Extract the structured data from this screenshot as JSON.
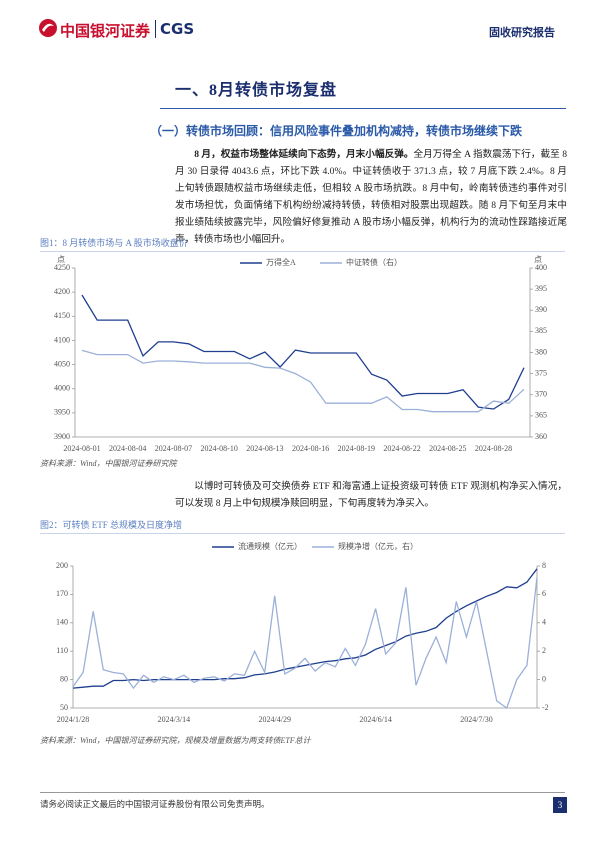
{
  "header": {
    "logo_cn": "中国银河证券",
    "logo_en": "CGS",
    "report_type": "固收研究报告"
  },
  "section": {
    "title": "一、8月转债市场复盘",
    "subtitle": "（一）转债市场回顾：信用风险事件叠加机构减持，转债市场继续下跌"
  },
  "paragraphs": [
    {
      "lead": "8 月，权益市场整体延续向下态势，月末小幅反弹。",
      "text": "全月万得全 A 指数震荡下行，截至 8 月 30 日录得 4043.6 点，环比下跌 4.0%。中证转债收于 371.3 点，较 7 月底下跌 2.4%。8 月上旬转债跟随权益市场继续走低，但相较 A 股市场抗跌。8 月中旬，岭南转债违约事件对引发市场担忧，负面情绪下机构纷纷减持转债，转债相对股票出现超跌。随 8 月下旬至月末中报业绩陆续披露完毕，风险偏好修复推动 A 股市场小幅反弹，机构行为的流动性踩踏接近尾声，转债市场也小幅回升。"
    },
    {
      "text": "以博时可转债及可交换债券 ETF 和海富通上证投资级可转债 ETF 观测机构净买入情况，可以发现 8 月上中旬规模净赎回明显，下旬再度转为净买入。"
    }
  ],
  "figures": [
    {
      "caption": "图1：8 月转债市场与 A 股市场收盘价",
      "source": "资料来源：Wind，中国银河证券研究院",
      "chart_data": {
        "type": "line",
        "categories": [
          "2024-08-01",
          null,
          null,
          "2024-08-04",
          null,
          null,
          "2024-08-07",
          null,
          null,
          "2024-08-10",
          null,
          null,
          "2024-08-13",
          null,
          null,
          "2024-08-16",
          null,
          null,
          "2024-08-19",
          null,
          null,
          "2024-08-22",
          null,
          null,
          "2024-08-25",
          null,
          null,
          "2024-08-28",
          null,
          null
        ],
        "ylabel": "点",
        "y2label": "点",
        "ylim": [
          3900,
          4250
        ],
        "yticks": [
          3900,
          3950,
          4000,
          4050,
          4100,
          4150,
          4200,
          4250
        ],
        "y2lim": [
          360,
          400
        ],
        "y2ticks": [
          360,
          365,
          370,
          375,
          380,
          385,
          390,
          395,
          400
        ],
        "legend": "top",
        "series": [
          {
            "name": "万得全A",
            "color": "#1f3f8f",
            "values": [
              4194,
              4142,
              4142,
              4142,
              4068,
              4097,
              4097,
              4093,
              4077,
              4077,
              4077,
              4062,
              4076,
              4045,
              4080,
              4074,
              4074,
              4074,
              4074,
              4030,
              4018,
              3985,
              3990,
              3990,
              3990,
              3998,
              3962,
              3958,
              3978,
              4043.6
            ]
          },
          {
            "name": "中证转债（右）",
            "color": "#9bb0d8",
            "axis": "y2",
            "values": [
              380.5,
              379.5,
              379.5,
              379.5,
              377.5,
              378,
              378,
              377.8,
              377.5,
              377.5,
              377.5,
              377.5,
              376.5,
              376.3,
              375,
              373,
              368,
              368,
              368,
              368,
              369.5,
              366.5,
              366.5,
              366,
              366,
              366,
              366,
              368.5,
              368,
              371.3
            ]
          }
        ]
      }
    },
    {
      "caption": "图2：可转债 ETF 总规模及日度净增",
      "source": "资料来源：Wind，中国银河证券研究院，规模及增量数据为两支转债ETF总计",
      "chart_data": {
        "type": "line",
        "categories": [
          "2024/1/28",
          null,
          null,
          null,
          null,
          null,
          null,
          null,
          null,
          null,
          "2024/3/14",
          null,
          null,
          null,
          null,
          null,
          null,
          null,
          null,
          null,
          "2024/4/29",
          null,
          null,
          null,
          null,
          null,
          null,
          null,
          null,
          null,
          "2024/6/14",
          null,
          null,
          null,
          null,
          null,
          null,
          null,
          null,
          null,
          "2024/7/30",
          null,
          null,
          null,
          null,
          null,
          null
        ],
        "ylim": [
          50,
          200
        ],
        "yticks": [
          50,
          80,
          110,
          140,
          170,
          200
        ],
        "y2lim": [
          -2,
          8
        ],
        "y2ticks": [
          -2,
          0,
          2,
          4,
          6,
          8
        ],
        "legend": "top",
        "series": [
          {
            "name": "流通规模（亿元）",
            "color": "#1f3f8f",
            "values": [
              71,
              72,
              73,
              73,
              79,
              79,
              80,
              79,
              80,
              80,
              80,
              80,
              80,
              80,
              80,
              81,
              81,
              82,
              85,
              86,
              88,
              91,
              93,
              95,
              97,
              99,
              100,
              102,
              103,
              106,
              112,
              116,
              120,
              126,
              129,
              131,
              135,
              145,
              152,
              158,
              163,
              168,
              172,
              178,
              177,
              183,
              197
            ]
          },
          {
            "name": "规模净增（亿元，右）",
            "color": "#9bb0d8",
            "axis": "y2",
            "values": [
              -0.5,
              0.5,
              4.8,
              0.7,
              0.5,
              0.4,
              -0.6,
              0.3,
              -0.2,
              0.2,
              0,
              0.3,
              -0.2,
              0.1,
              0.2,
              -0.1,
              0.4,
              0.3,
              2.0,
              0.5,
              5.9,
              0.4,
              0.8,
              1.5,
              0.6,
              1.2,
              0.9,
              2.2,
              1.0,
              2.5,
              5.0,
              1.8,
              2.6,
              6.5,
              -0.4,
              1.5,
              3.0,
              1.2,
              5.5,
              3.0,
              5.5,
              2.0,
              -1.5,
              -2.0,
              0,
              1.0,
              7.2
            ]
          }
        ]
      }
    }
  ],
  "footer": {
    "disclaimer": "请务必阅读正文最后的中国银河证券股份有限公司免责声明。",
    "page": 3
  }
}
